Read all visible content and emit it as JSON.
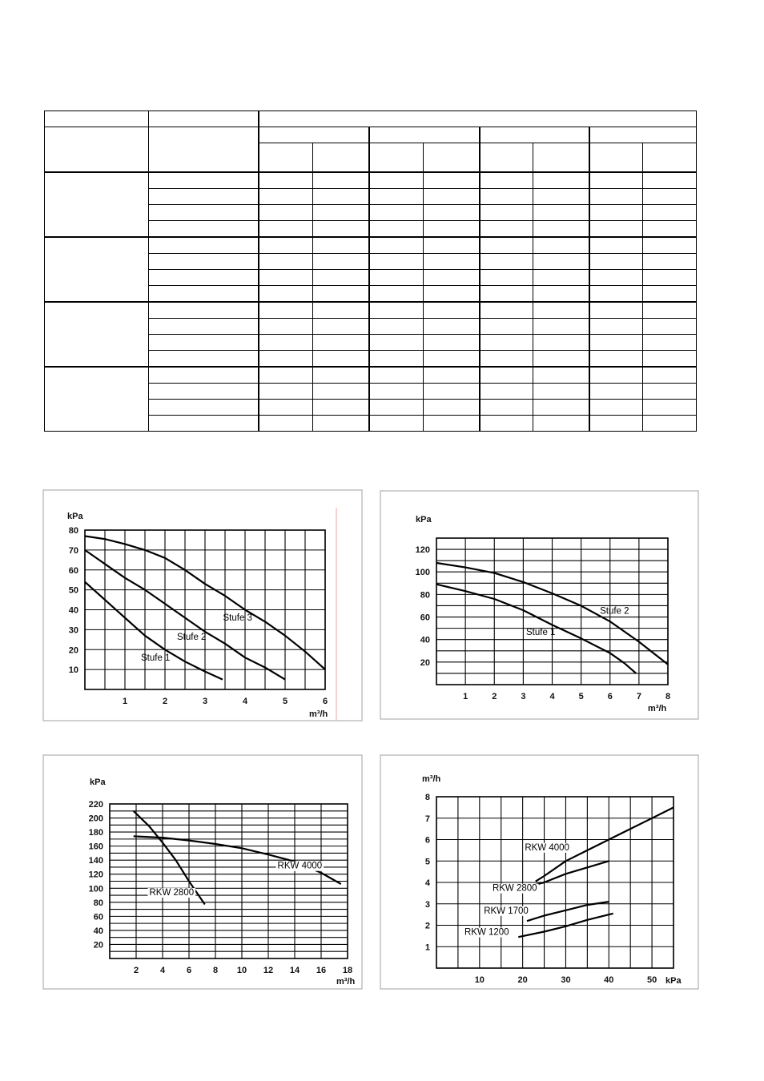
{
  "table": {
    "group_count": 4,
    "rows_per_group": 4,
    "subcolumns": 8,
    "header_groups": 4
  },
  "chart_data": [
    {
      "type": "line",
      "ylabel": "kPa",
      "xlabel": "m³/h",
      "xlim": [
        0,
        6
      ],
      "ylim": [
        0,
        80
      ],
      "xticks": [
        1,
        2,
        3,
        4,
        5,
        6
      ],
      "yticks": [
        10,
        20,
        30,
        40,
        50,
        60,
        70,
        80
      ],
      "grid": true,
      "grid_x_step": 0.5,
      "grid_y_step": 10,
      "series": [
        {
          "name": "Stufe 3",
          "x": [
            0,
            0.5,
            1,
            1.5,
            2,
            2.5,
            3,
            3.5,
            4,
            4.5,
            5,
            5.5,
            6
          ],
          "y": [
            77,
            75.5,
            73,
            70,
            66,
            60,
            53,
            47,
            40,
            34,
            27,
            19,
            10
          ]
        },
        {
          "name": "Stufe 2",
          "x": [
            0,
            0.5,
            1,
            1.5,
            2,
            2.5,
            3,
            3.5,
            4,
            4.5,
            5
          ],
          "y": [
            70,
            63,
            56,
            50,
            43,
            36,
            29,
            23,
            16,
            11,
            5
          ]
        },
        {
          "name": "Stufe 1",
          "x": [
            0,
            0.5,
            1,
            1.5,
            2,
            2.5,
            3,
            3.44
          ],
          "y": [
            54,
            45,
            36,
            27,
            20,
            14,
            9,
            5
          ]
        }
      ]
    },
    {
      "type": "line",
      "ylabel": "kPa",
      "xlabel": "m³/h",
      "xlim": [
        0,
        8
      ],
      "ylim": [
        0,
        130
      ],
      "xticks": [
        1,
        2,
        3,
        4,
        5,
        6,
        7,
        8
      ],
      "yticks": [
        20,
        40,
        60,
        80,
        100,
        120
      ],
      "grid": true,
      "grid_x_step": 1,
      "grid_y_step": 10,
      "series": [
        {
          "name": "Stufe 2",
          "x": [
            0,
            1,
            2,
            3,
            4,
            5,
            6,
            7,
            8
          ],
          "y": [
            108,
            104,
            99,
            91,
            81,
            70,
            56,
            38,
            18
          ]
        },
        {
          "name": "Stufe 1",
          "x": [
            0,
            1,
            2,
            3,
            4,
            5,
            6,
            6.5,
            6.9
          ],
          "y": [
            89,
            83,
            76,
            66,
            53,
            41,
            28,
            19,
            10
          ]
        }
      ]
    },
    {
      "type": "line",
      "ylabel": "kPa",
      "xlabel": "m³/h",
      "xlim": [
        0,
        18
      ],
      "ylim": [
        0,
        220
      ],
      "xticks": [
        2,
        4,
        6,
        8,
        10,
        12,
        14,
        16,
        18
      ],
      "yticks": [
        20,
        40,
        60,
        80,
        100,
        120,
        140,
        160,
        180,
        200,
        220
      ],
      "grid": true,
      "grid_x_step": 2,
      "grid_y_step": 10,
      "series": [
        {
          "name": "RKW 4000",
          "x": [
            1.8,
            4,
            6,
            8,
            10,
            12,
            14,
            16,
            17.5
          ],
          "y": [
            174,
            172,
            168,
            163,
            157,
            148,
            138,
            122,
            106
          ]
        },
        {
          "name": "RKW 2800",
          "x": [
            1.8,
            3,
            4,
            5,
            6,
            7.2
          ],
          "y": [
            210,
            188,
            165,
            140,
            110,
            77
          ]
        }
      ]
    },
    {
      "type": "line",
      "ylabel": "m³/h",
      "xlabel": "kPa",
      "xlim": [
        0,
        55
      ],
      "ylim": [
        0,
        8
      ],
      "xticks": [
        10,
        20,
        30,
        40,
        50
      ],
      "yticks": [
        1,
        2,
        3,
        4,
        5,
        6,
        7,
        8
      ],
      "grid": true,
      "grid_x_step": 5,
      "grid_y_step": 1,
      "series": [
        {
          "name": "RKW 4000",
          "x": [
            23,
            25,
            30,
            35,
            40,
            45,
            50,
            55
          ],
          "y": [
            4.05,
            4.3,
            5,
            5.5,
            6,
            6.5,
            7,
            7.5
          ]
        },
        {
          "name": "RKW 2800",
          "x": [
            23,
            25,
            30,
            35,
            40
          ],
          "y": [
            3.9,
            4.0,
            4.4,
            4.7,
            5.0
          ]
        },
        {
          "name": "RKW 1700",
          "x": [
            21,
            25,
            30,
            35,
            40
          ],
          "y": [
            2.2,
            2.45,
            2.7,
            2.95,
            3.1
          ]
        },
        {
          "name": "RKW 1200",
          "x": [
            19,
            25,
            30,
            35,
            41
          ],
          "y": [
            1.45,
            1.7,
            1.95,
            2.25,
            2.55
          ]
        }
      ]
    }
  ]
}
